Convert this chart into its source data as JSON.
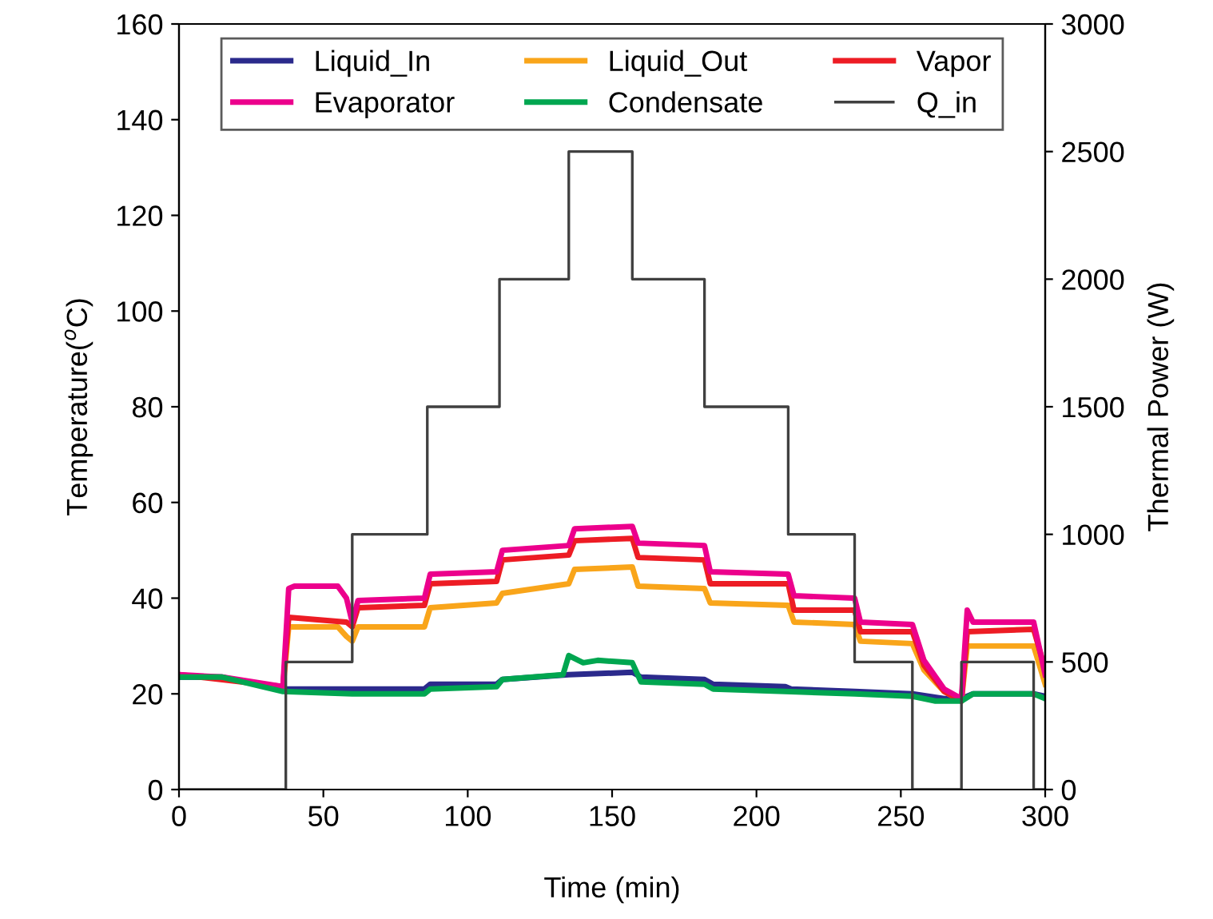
{
  "chart_data": {
    "type": "line",
    "xlabel": "Time (min)",
    "ylabel": "Temperature($^{o}$C)",
    "y2label": "Thermal Power (W)",
    "xlim": [
      0,
      300
    ],
    "xticks": [
      0,
      50,
      100,
      150,
      200,
      250,
      300
    ],
    "ylim": [
      0,
      160
    ],
    "yticks": [
      0,
      20,
      40,
      60,
      80,
      100,
      120,
      140,
      160
    ],
    "y2lim": [
      0,
      3000
    ],
    "y2ticks": [
      0,
      500,
      1000,
      1500,
      2000,
      2500,
      3000
    ],
    "grid": false,
    "legend": "top",
    "marker": "none",
    "line_style": "solid",
    "series": [
      {
        "name": "Liquid_In",
        "color": "#2b2a8c",
        "x": [
          0,
          15,
          36,
          50,
          60,
          85,
          87,
          110,
          112,
          135,
          157,
          160,
          182,
          185,
          210,
          212,
          234,
          254,
          265,
          271,
          275,
          296,
          300
        ],
        "values": [
          23.5,
          23.5,
          21,
          21,
          21,
          21,
          22,
          22,
          23,
          24,
          24.5,
          23.5,
          23,
          22,
          21.5,
          21,
          20.5,
          20,
          19,
          19,
          20,
          20,
          19.5
        ]
      },
      {
        "name": "Liquid_Out",
        "color": "#f9a51a",
        "x": [
          36,
          38,
          55,
          58,
          60,
          62,
          85,
          87,
          110,
          112,
          135,
          137,
          157,
          159,
          182,
          184,
          211,
          213,
          234,
          236,
          254,
          258,
          265,
          271,
          273,
          296,
          300
        ],
        "values": [
          21,
          34,
          34,
          32,
          31,
          34,
          34,
          38,
          39,
          41,
          43,
          46,
          46.5,
          42.5,
          42,
          39,
          38.5,
          35,
          34.5,
          31,
          30.5,
          25,
          20.5,
          18.5,
          30,
          30,
          22
        ]
      },
      {
        "name": "Vapor",
        "color": "#ed1c24",
        "x": [
          0,
          36,
          38,
          58,
          60,
          62,
          85,
          87,
          110,
          112,
          135,
          137,
          157,
          159,
          182,
          184,
          211,
          213,
          234,
          236,
          254,
          258,
          265,
          271,
          273,
          296,
          300
        ],
        "values": [
          24,
          21.5,
          36,
          35,
          34,
          38,
          38.5,
          43,
          43.5,
          48,
          49,
          52,
          52.5,
          48.5,
          48,
          43,
          43,
          37.5,
          37.5,
          33,
          33,
          26,
          20.5,
          18.5,
          33,
          33.5,
          25
        ]
      },
      {
        "name": "Evaporator",
        "color": "#ec008c",
        "x": [
          0,
          15,
          36,
          38,
          40,
          55,
          58,
          60,
          62,
          85,
          87,
          110,
          112,
          135,
          137,
          157,
          159,
          182,
          184,
          211,
          213,
          234,
          236,
          254,
          258,
          265,
          271,
          273,
          275,
          296,
          300
        ],
        "values": [
          24,
          23.5,
          21.5,
          42,
          42.5,
          42.5,
          40,
          35,
          39.5,
          40,
          45,
          45.5,
          50,
          51,
          54.5,
          55,
          51.5,
          51,
          45.5,
          45,
          40.5,
          40,
          35,
          34.5,
          27,
          21,
          19,
          37.5,
          35,
          35,
          24
        ]
      },
      {
        "name": "Condensate",
        "color": "#00a650",
        "x": [
          0,
          15,
          36,
          60,
          85,
          87,
          110,
          112,
          133,
          135,
          140,
          145,
          157,
          160,
          182,
          185,
          210,
          234,
          254,
          262,
          271,
          275,
          296,
          300
        ],
        "values": [
          23.5,
          23.5,
          20.5,
          20,
          20,
          21,
          21.5,
          23,
          24,
          28,
          26.5,
          27,
          26.5,
          22.5,
          22,
          21,
          20.5,
          20,
          19.5,
          18.5,
          18.5,
          20,
          20,
          19
        ]
      },
      {
        "name": "Q_in",
        "type": "step",
        "axis": "y2",
        "color": "#404040",
        "x": [
          0,
          37,
          60,
          86,
          111,
          135,
          157,
          182,
          211,
          234,
          254,
          271,
          296,
          300
        ],
        "values": [
          0,
          500,
          1000,
          1500,
          2000,
          2500,
          2000,
          1500,
          1000,
          500,
          0,
          500,
          0,
          0
        ]
      }
    ]
  }
}
